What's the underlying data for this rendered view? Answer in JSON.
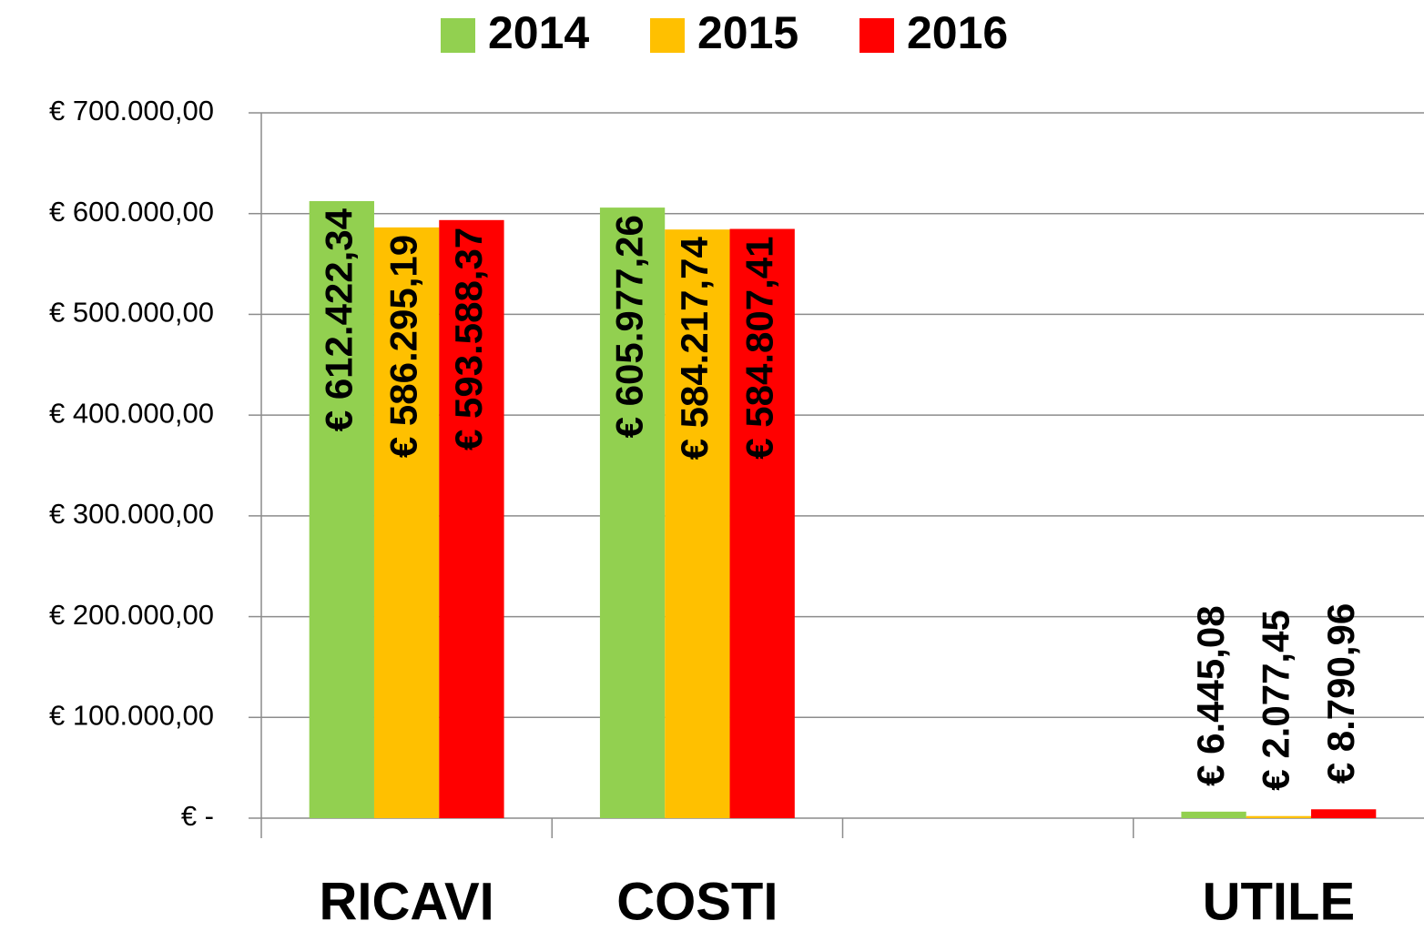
{
  "chart_data": {
    "type": "bar",
    "categories": [
      "RICAVI",
      "COSTI",
      null,
      "UTILE"
    ],
    "series": [
      {
        "name": "2014",
        "color": "#92d050",
        "values": [
          612422.34,
          605977.26,
          null,
          6445.08
        ],
        "value_labels": [
          "€ 612.422,34",
          "€ 605.977,26",
          null,
          "€ 6.445,08"
        ]
      },
      {
        "name": "2015",
        "color": "#ffc000",
        "values": [
          586295.19,
          584217.74,
          null,
          2077.45
        ],
        "value_labels": [
          "€ 586.295,19",
          "€ 584.217,74",
          null,
          "€ 2.077,45"
        ]
      },
      {
        "name": "2016",
        "color": "#ff0000",
        "values": [
          593588.37,
          584807.41,
          null,
          8790.96
        ],
        "value_labels": [
          "€ 593.588,37",
          "€ 584.807,41",
          null,
          "€ 8.790,96"
        ]
      }
    ],
    "ylim": [
      0,
      700000
    ],
    "yticks": [
      {
        "value": 0,
        "label": "€ -"
      },
      {
        "value": 100000,
        "label": "€ 100.000,00"
      },
      {
        "value": 200000,
        "label": "€ 200.000,00"
      },
      {
        "value": 300000,
        "label": "€ 300.000,00"
      },
      {
        "value": 400000,
        "label": "€ 400.000,00"
      },
      {
        "value": 500000,
        "label": "€ 500.000,00"
      },
      {
        "value": 600000,
        "label": "€ 600.000,00"
      },
      {
        "value": 700000,
        "label": "€ 700.000,00"
      }
    ],
    "grid": true,
    "legend": "top"
  }
}
